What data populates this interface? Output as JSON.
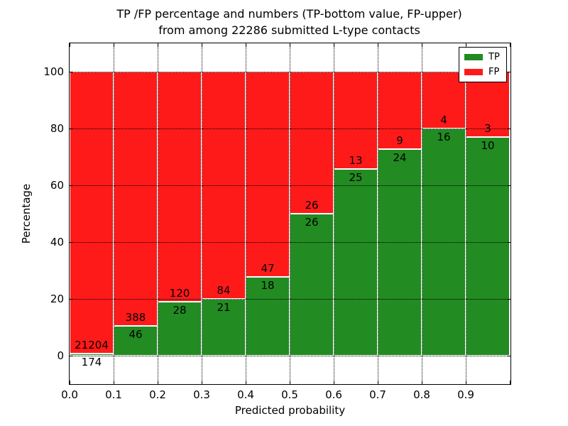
{
  "title": {
    "line1": "TP /FP percentage and numbers (TP-bottom value, FP-upper)",
    "line2": "from among 22286 submitted L-type contacts"
  },
  "axes": {
    "xlabel": "Predicted probability",
    "ylabel": "Percentage",
    "x_tick_labels": [
      "0.0",
      "0.1",
      "0.2",
      "0.3",
      "0.4",
      "0.5",
      "0.6",
      "0.7",
      "0.8",
      "0.9"
    ],
    "y_ticks": [
      0,
      20,
      40,
      60,
      80,
      100
    ]
  },
  "legend": {
    "position": "upper right",
    "items": [
      {
        "label": "TP",
        "color": "#228b22"
      },
      {
        "label": "FP",
        "color": "#ff1a1a"
      }
    ]
  },
  "chart_data": {
    "type": "bar",
    "stacked": true,
    "normalized_to_percent": true,
    "title": "TP /FP percentage and numbers (TP-bottom value, FP-upper) from among 22286 submitted L-type contacts",
    "xlabel": "Predicted probability",
    "ylabel": "Percentage",
    "total_contacts": 22286,
    "categories": [
      "0.0-0.1",
      "0.1-0.2",
      "0.2-0.3",
      "0.3-0.4",
      "0.4-0.5",
      "0.5-0.6",
      "0.6-0.7",
      "0.7-0.8",
      "0.8-0.9",
      "0.9-1.0"
    ],
    "x_bin_edges": [
      0.0,
      0.1,
      0.2,
      0.3,
      0.4,
      0.5,
      0.6,
      0.7,
      0.8,
      0.9,
      1.0
    ],
    "series": [
      {
        "name": "TP",
        "color": "#228b22",
        "values": [
          174,
          46,
          28,
          21,
          18,
          26,
          25,
          24,
          16,
          10
        ]
      },
      {
        "name": "FP",
        "color": "#ff1a1a",
        "values": [
          21204,
          388,
          120,
          84,
          47,
          26,
          13,
          9,
          4,
          3
        ]
      }
    ],
    "tp_percent_per_bin": [
      0.81,
      10.6,
      18.9,
      20.0,
      27.7,
      50.0,
      65.8,
      72.7,
      80.0,
      76.9
    ],
    "xlim": [
      0,
      1
    ],
    "ylim": [
      -10,
      110
    ],
    "grid": true,
    "bar_edge_color": "#ffffff"
  }
}
